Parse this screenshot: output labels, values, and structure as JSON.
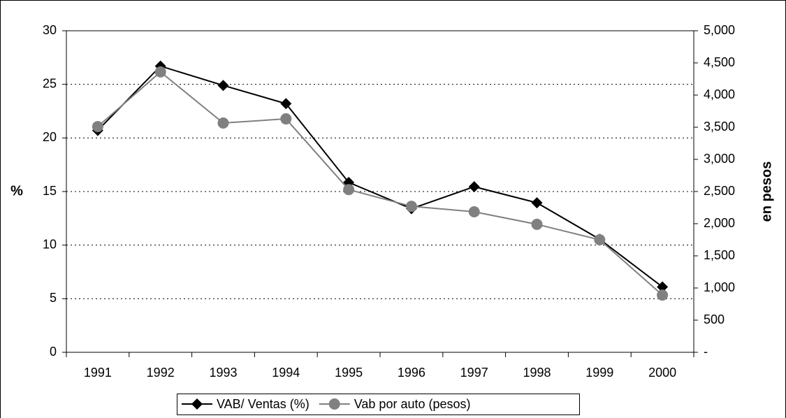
{
  "chart_data": {
    "type": "line",
    "categories": [
      "1991",
      "1992",
      "1993",
      "1994",
      "1995",
      "1996",
      "1997",
      "1998",
      "1999",
      "2000"
    ],
    "series": [
      {
        "name": "VAB/ Ventas (%)",
        "color": "#000000",
        "marker": "diamond",
        "values": [
          20.7,
          26.7,
          24.9,
          23.2,
          15.85,
          13.4,
          15.45,
          13.95,
          10.55,
          6.1
        ]
      },
      {
        "name": "Vab por auto (pesos)",
        "color": "#808080",
        "marker": "circle",
        "axis": "y2",
        "values": [
          3510,
          4360,
          3565,
          3630,
          2530,
          2270,
          2185,
          1990,
          1750,
          890
        ]
      }
    ],
    "ylabel": "%",
    "y2label": "en pesos",
    "ylim": [
      0,
      30
    ],
    "yticks": [
      0,
      5,
      10,
      15,
      20,
      25,
      30
    ],
    "y2lim": [
      0,
      5000
    ],
    "y2ticks": [
      {
        "value": 0,
        "label": "-"
      },
      500,
      {
        "value": 1000,
        "label": "1,000"
      },
      {
        "value": 1500,
        "label": "1,500"
      },
      {
        "value": 2000,
        "label": "2,000"
      },
      {
        "value": 2500,
        "label": "2,500"
      },
      {
        "value": 3000,
        "label": "3,000"
      },
      {
        "value": 3500,
        "label": "3,500"
      },
      {
        "value": 4000,
        "label": "4,000"
      },
      {
        "value": 4500,
        "label": "4,500"
      },
      {
        "value": 5000,
        "label": "5,000"
      }
    ],
    "grid": true,
    "legend": "bottom"
  }
}
